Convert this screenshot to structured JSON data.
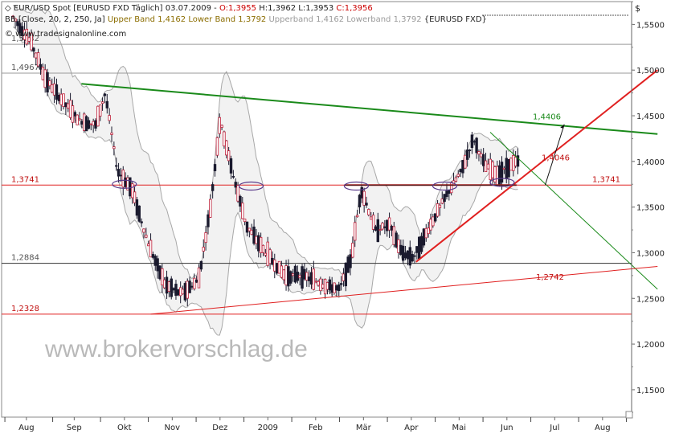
{
  "header": {
    "line1_prefix": "EUR/USD Spot [EURUSD FXD  Täglich] 03.07.2009 - ",
    "open": "O:1,3955",
    "high": "H:1,3962",
    "low": "L:1,3953",
    "close": "C:1,3956",
    "line2_prefix": "BB [Close, 20, 2, 250, Ja] ",
    "upper_band": "Upper Band 1,4162",
    "lower_band": "Lower Band 1,3792",
    "bands_gray": "Upperband 1,4162 Lowerband 1,3792",
    "symbol": "{EURUSD FXD}",
    "source": "© www.tradesignalonline.com",
    "currency": "$"
  },
  "watermark": "www.brokervorschlag.de",
  "colors": {
    "candle_up": "#ffffff",
    "candle_down": "#1a1a2e",
    "bar_accent": "#c0203a",
    "trend_green": "#1a8a1a",
    "trend_red": "#e02020",
    "band_gray": "#a8a8a8",
    "level_red": "#e02020",
    "level_black": "#333333",
    "open_color": "#cc0000",
    "band_color": "#8b6d00",
    "gray_text": "#999999"
  },
  "chart_data": {
    "type": "candlestick",
    "title": "EUR/USD Spot [EURUSD FXD Täglich] 03.07.2009",
    "ylim": [
      1.12,
      1.575
    ],
    "y_ticks": [
      "1,5500",
      "1,5000",
      "1,4500",
      "1,4000",
      "1,3500",
      "1,3000",
      "1,2500",
      "1,2000",
      "1,1500"
    ],
    "y_tick_values": [
      1.55,
      1.5,
      1.45,
      1.4,
      1.35,
      1.3,
      1.25,
      1.2,
      1.15
    ],
    "x_ticks": [
      "Aug",
      "Sep",
      "Okt",
      "Nov",
      "Dez",
      "2009",
      "Feb",
      "Mär",
      "Apr",
      "Mai",
      "Jun",
      "Jul",
      "Aug"
    ],
    "x_tick_month_index": [
      0.3,
      1.3,
      2.35,
      3.35,
      4.35,
      5.35,
      6.35,
      7.35,
      8.35,
      9.35,
      10.35,
      11.35,
      12.35
    ],
    "horizontal_levels": [
      {
        "label": "1,5282",
        "value": 1.5282,
        "color": "#9a9a9a"
      },
      {
        "label": "1,4967",
        "value": 1.4967,
        "color": "#9a9a9a"
      },
      {
        "label": "1,3741",
        "value": 1.3741,
        "color": "#e02020"
      },
      {
        "label": "1,2884",
        "value": 1.2884,
        "color": "#333333"
      },
      {
        "label": "1,2328",
        "value": 1.2328,
        "color": "#e02020"
      }
    ],
    "annotations": [
      {
        "label": "1,4406",
        "value": 1.4406,
        "color": "#1a8a1a"
      },
      {
        "label": "1,4046",
        "value": 1.4046,
        "color": "#e02020"
      },
      {
        "label": "1,2742",
        "value": 1.2742,
        "color": "#e02020"
      }
    ],
    "close_anchor_points": [
      [
        0.0,
        1.56
      ],
      [
        0.4,
        1.53
      ],
      [
        0.7,
        1.49
      ],
      [
        1.0,
        1.47
      ],
      [
        1.4,
        1.445
      ],
      [
        1.75,
        1.44
      ],
      [
        1.95,
        1.475
      ],
      [
        2.2,
        1.39
      ],
      [
        2.5,
        1.37
      ],
      [
        2.85,
        1.31
      ],
      [
        3.2,
        1.265
      ],
      [
        3.55,
        1.255
      ],
      [
        3.9,
        1.27
      ],
      [
        4.15,
        1.35
      ],
      [
        4.35,
        1.445
      ],
      [
        4.6,
        1.39
      ],
      [
        4.9,
        1.33
      ],
      [
        5.3,
        1.3
      ],
      [
        5.7,
        1.275
      ],
      [
        6.1,
        1.275
      ],
      [
        6.5,
        1.265
      ],
      [
        6.85,
        1.26
      ],
      [
        7.1,
        1.295
      ],
      [
        7.3,
        1.37
      ],
      [
        7.6,
        1.325
      ],
      [
        7.9,
        1.33
      ],
      [
        8.15,
        1.3
      ],
      [
        8.4,
        1.295
      ],
      [
        8.7,
        1.325
      ],
      [
        9.05,
        1.36
      ],
      [
        9.4,
        1.39
      ],
      [
        9.65,
        1.425
      ],
      [
        9.9,
        1.395
      ],
      [
        10.15,
        1.385
      ],
      [
        10.4,
        1.395
      ],
      [
        10.6,
        1.4
      ]
    ],
    "trendlines": [
      {
        "name": "green-resistance",
        "from": [
          1.45,
          1.485
        ],
        "to": [
          13.5,
          1.43
        ]
      },
      {
        "name": "green-down-channel",
        "from": [
          10.0,
          1.432
        ],
        "to": [
          13.5,
          1.26
        ]
      },
      {
        "name": "red-support",
        "from": [
          2.9,
          1.2328
        ],
        "to": [
          13.5,
          1.285
        ]
      },
      {
        "name": "red-uptrend",
        "from": [
          8.45,
          1.29
        ],
        "to": [
          13.5,
          1.5
        ]
      },
      {
        "name": "red-neckline",
        "from": [
          6.95,
          1.3741
        ],
        "to": [
          10.55,
          1.3741
        ]
      }
    ],
    "ellipses": [
      {
        "name": "shoulder-1",
        "x": 2.35,
        "y": 1.375
      },
      {
        "name": "shoulder-2",
        "x": 5.0,
        "y": 1.373
      },
      {
        "name": "shoulder-3",
        "x": 7.2,
        "y": 1.373
      },
      {
        "name": "shoulder-4",
        "x": 9.05,
        "y": 1.373
      },
      {
        "name": "shoulder-5",
        "x": 10.25,
        "y": 1.377
      }
    ]
  }
}
